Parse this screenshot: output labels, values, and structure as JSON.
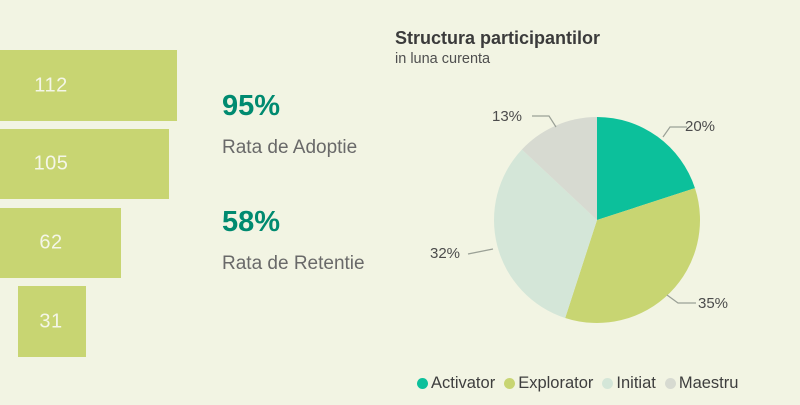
{
  "colors": {
    "background": "#f2f4e3",
    "activator_teal": "#0cc09b",
    "explorator_green": "#c8d572",
    "initiat_mint": "#d4e6d8",
    "maestru_gray": "#d7dad1",
    "kpi_teal": "#008a70",
    "leader_line": "#9aa096"
  },
  "kpis": [
    {
      "value": "95%",
      "label": "Rata de Adoptie"
    },
    {
      "value": "58%",
      "label": "Rata de Retentie"
    }
  ],
  "pie_section": {
    "title": "Structura participantilor",
    "subtitle": "in luna curenta"
  },
  "legend": {
    "items": [
      {
        "label": "Activator",
        "color": "#0cc09b"
      },
      {
        "label": "Explorator",
        "color": "#c8d572"
      },
      {
        "label": "Initiat",
        "color": "#d4e6d8"
      },
      {
        "label": "Maestru",
        "color": "#d7dad1"
      }
    ]
  },
  "chart_data": [
    {
      "type": "bar",
      "subtype": "horizontal-funnel",
      "values": [
        112,
        105,
        62,
        31
      ],
      "bar_color": "#c8d572",
      "value_label_color": "#f4f6e8",
      "note": "left-clipped funnel, data labels inside bars"
    },
    {
      "type": "pie",
      "title": "Structura participantilor",
      "subtitle": "in luna curenta",
      "categories": [
        "Activator",
        "Explorator",
        "Initiat",
        "Maestru"
      ],
      "values": [
        20,
        35,
        32,
        13
      ],
      "percent_labels": [
        "20%",
        "35%",
        "32%",
        "13%"
      ],
      "colors": [
        "#0cc09b",
        "#c8d572",
        "#d4e6d8",
        "#d7dad1"
      ],
      "start_angle_deg": 0,
      "direction": "clockwise",
      "legend_position": "bottom"
    }
  ]
}
